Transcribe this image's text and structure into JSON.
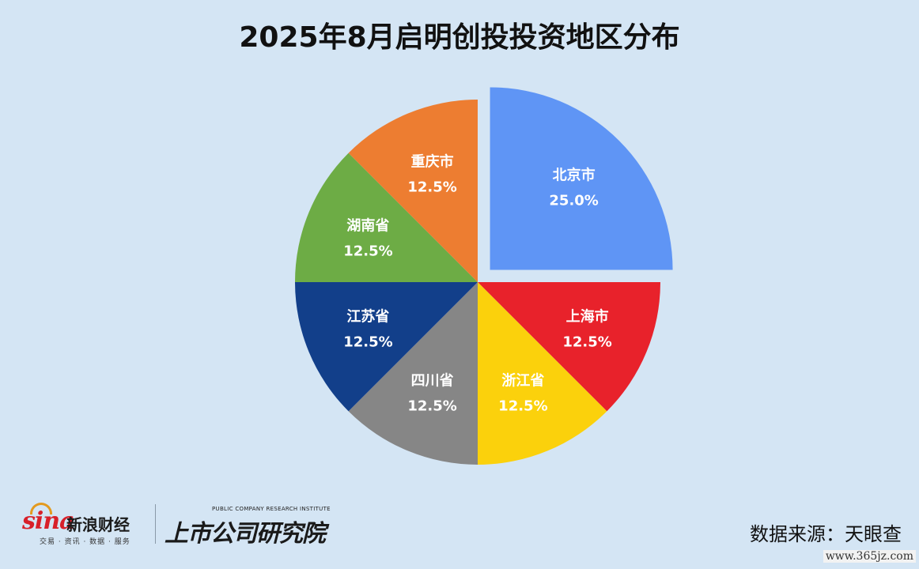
{
  "chart_data": {
    "type": "pie",
    "title": "2025年8月启明创投投资地区分布",
    "slices": [
      {
        "label": "北京市",
        "value": 25.0,
        "display": "25.0%",
        "color": "#5f95f5",
        "exploded": true
      },
      {
        "label": "上海市",
        "value": 12.5,
        "display": "12.5%",
        "color": "#e8222b",
        "exploded": false
      },
      {
        "label": "浙江省",
        "value": 12.5,
        "display": "12.5%",
        "color": "#fbd10c",
        "exploded": false
      },
      {
        "label": "四川省",
        "value": 12.5,
        "display": "12.5%",
        "color": "#868686",
        "exploded": false
      },
      {
        "label": "江苏省",
        "value": 12.5,
        "display": "12.5%",
        "color": "#123f8a",
        "exploded": false
      },
      {
        "label": "湖南省",
        "value": 12.5,
        "display": "12.5%",
        "color": "#6dac45",
        "exploded": false
      },
      {
        "label": "重庆市",
        "value": 12.5,
        "display": "12.5%",
        "color": "#ed7d31",
        "exploded": false
      }
    ],
    "start_angle": "12 o'clock",
    "direction": "clockwise",
    "legend": "none"
  },
  "source": "数据来源：天眼查",
  "logos": {
    "sina_word": "sina",
    "sina_cn": "新浪财经",
    "sina_sub": "交易 · 资讯 · 数据 · 服务",
    "slcy_en": "PUBLIC COMPANY RESEARCH INSTITUTE",
    "slcy_cn": "上市公司研究院"
  },
  "watermark": "www.365jz.com",
  "colors": {
    "background": "#d4e5f4"
  }
}
